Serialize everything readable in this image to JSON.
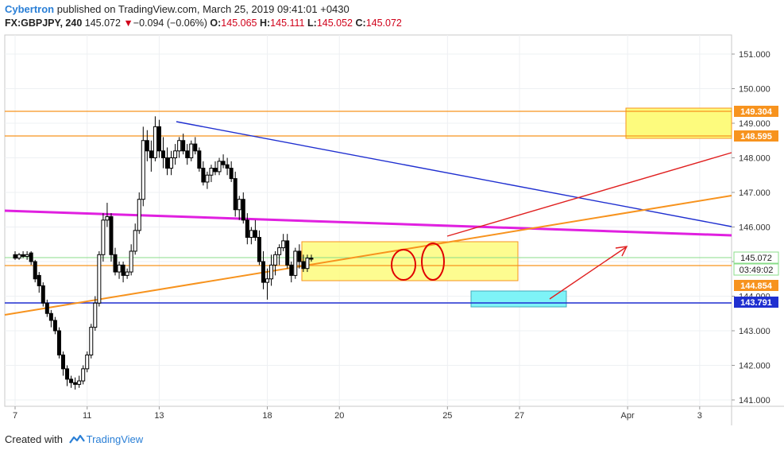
{
  "header": {
    "author": "Cybertron",
    "published_text": "published on TradingView.com, March 25, 2019 09:41:01 +0430",
    "symbol": "FX:GBPJPY, 240",
    "last": "145.072",
    "change_symbol": "▼",
    "change": "−0.094 (−0.06%)",
    "o_label": "O:",
    "o_value": "145.065",
    "h_label": "H:",
    "h_value": "145.111",
    "l_label": "L:",
    "l_value": "145.052",
    "c_label": "C:",
    "c_value": "145.072"
  },
  "footer": {
    "created_with": "Created with",
    "brand": "TradingView"
  },
  "colors": {
    "up_candle": "#ffffff",
    "down_candle": "#000000",
    "orange": "#f7931e",
    "blue": "#1f2fd0",
    "magenta": "#e020e0",
    "red": "#e02020",
    "yellow_zone": "#fdfb7d",
    "cyan_zone": "#7ef3f7",
    "green_price": "#88dd88"
  },
  "chart_data": {
    "type": "candlestick",
    "symbol": "FX:GBPJPY",
    "timeframe": "240",
    "ylim": [
      140.9,
      151.6
    ],
    "y_ticks": [
      "141.000",
      "142.000",
      "143.000",
      "144.000",
      "145.000",
      "146.000",
      "147.000",
      "148.000",
      "149.000",
      "150.000",
      "151.000"
    ],
    "x_ticks": [
      {
        "label": "7",
        "index": 0
      },
      {
        "label": "11",
        "index": 18
      },
      {
        "label": "13",
        "index": 36
      },
      {
        "label": "18",
        "index": 63
      },
      {
        "label": "20",
        "index": 81
      },
      {
        "label": "25",
        "index": 108
      },
      {
        "label": "27",
        "index": 126
      },
      {
        "label": "Apr",
        "index": 153
      },
      {
        "label": "3",
        "index": 171
      }
    ],
    "candles": [
      [
        145.2,
        145.3,
        145.05,
        145.1
      ],
      [
        145.1,
        145.25,
        145.05,
        145.2
      ],
      [
        145.2,
        145.3,
        145.1,
        145.15
      ],
      [
        145.15,
        145.3,
        145.05,
        145.2
      ],
      [
        145.25,
        145.3,
        144.9,
        145.0
      ],
      [
        145.0,
        145.05,
        144.4,
        144.5
      ],
      [
        144.6,
        144.7,
        144.1,
        144.3
      ],
      [
        144.3,
        144.4,
        143.7,
        143.8
      ],
      [
        143.8,
        143.9,
        143.4,
        143.5
      ],
      [
        143.5,
        143.6,
        143.1,
        143.3
      ],
      [
        143.3,
        143.4,
        142.9,
        143.0
      ],
      [
        143.0,
        143.1,
        142.2,
        142.3
      ],
      [
        142.3,
        142.4,
        141.7,
        141.9
      ],
      [
        141.9,
        142.0,
        141.4,
        141.6
      ],
      [
        141.6,
        141.7,
        141.35,
        141.5
      ],
      [
        141.5,
        141.65,
        141.3,
        141.45
      ],
      [
        141.45,
        141.7,
        141.35,
        141.55
      ],
      [
        141.55,
        142.0,
        141.45,
        141.9
      ],
      [
        141.9,
        142.4,
        141.8,
        142.3
      ],
      [
        142.3,
        143.2,
        142.2,
        143.1
      ],
      [
        143.1,
        144.0,
        143.0,
        143.8
      ],
      [
        143.8,
        145.3,
        143.7,
        145.2
      ],
      [
        145.2,
        146.4,
        145.0,
        146.2
      ],
      [
        146.2,
        146.7,
        146.0,
        146.3
      ],
      [
        146.3,
        146.4,
        145.0,
        145.2
      ],
      [
        145.2,
        145.4,
        144.6,
        144.7
      ],
      [
        144.7,
        145.0,
        144.5,
        144.9
      ],
      [
        144.9,
        145.0,
        144.4,
        144.6
      ],
      [
        144.6,
        144.8,
        144.5,
        144.7
      ],
      [
        144.7,
        145.5,
        144.6,
        145.3
      ],
      [
        145.3,
        146.1,
        145.2,
        145.9
      ],
      [
        145.9,
        147.0,
        145.8,
        146.8
      ],
      [
        146.8,
        148.9,
        146.6,
        148.5
      ],
      [
        148.5,
        148.8,
        147.9,
        148.2
      ],
      [
        148.2,
        148.5,
        147.6,
        148.0
      ],
      [
        148.0,
        149.2,
        147.9,
        148.9
      ],
      [
        148.9,
        149.1,
        148.0,
        148.2
      ],
      [
        148.2,
        148.6,
        147.7,
        148.0
      ],
      [
        148.0,
        148.3,
        147.5,
        147.7
      ],
      [
        147.7,
        148.2,
        147.5,
        148.0
      ],
      [
        148.0,
        148.4,
        147.8,
        148.2
      ],
      [
        148.2,
        148.6,
        148.0,
        148.5
      ],
      [
        148.5,
        148.7,
        148.1,
        148.2
      ],
      [
        148.2,
        148.4,
        147.8,
        148.0
      ],
      [
        148.0,
        148.5,
        147.9,
        148.4
      ],
      [
        148.4,
        148.6,
        148.1,
        148.2
      ],
      [
        148.2,
        148.3,
        147.6,
        147.7
      ],
      [
        147.7,
        147.9,
        147.2,
        147.3
      ],
      [
        147.3,
        147.6,
        147.1,
        147.5
      ],
      [
        147.5,
        147.8,
        147.3,
        147.7
      ],
      [
        147.7,
        147.9,
        147.5,
        147.6
      ],
      [
        147.6,
        148.0,
        147.5,
        147.9
      ],
      [
        147.9,
        148.1,
        147.7,
        147.8
      ],
      [
        147.8,
        148.0,
        147.5,
        147.7
      ],
      [
        147.7,
        147.9,
        147.3,
        147.4
      ],
      [
        147.4,
        147.6,
        146.3,
        146.5
      ],
      [
        146.5,
        146.9,
        146.2,
        146.8
      ],
      [
        146.8,
        147.0,
        146.1,
        146.2
      ],
      [
        146.2,
        146.4,
        145.5,
        145.7
      ],
      [
        145.7,
        146.0,
        145.5,
        145.9
      ],
      [
        145.9,
        146.2,
        145.6,
        145.7
      ],
      [
        145.7,
        145.9,
        144.9,
        145.0
      ],
      [
        145.0,
        145.3,
        144.2,
        144.4
      ],
      [
        144.4,
        144.8,
        143.9,
        144.5
      ],
      [
        144.5,
        145.2,
        144.3,
        144.9
      ],
      [
        144.9,
        145.3,
        144.6,
        145.2
      ],
      [
        145.2,
        145.5,
        144.9,
        145.4
      ],
      [
        145.4,
        145.8,
        145.3,
        145.6
      ],
      [
        145.6,
        145.8,
        144.8,
        144.9
      ],
      [
        144.9,
        145.0,
        144.4,
        144.6
      ],
      [
        144.6,
        145.4,
        144.5,
        145.3
      ],
      [
        145.3,
        145.5,
        144.8,
        145.0
      ],
      [
        145.0,
        145.2,
        144.7,
        144.8
      ],
      [
        144.8,
        145.2,
        144.7,
        145.1
      ],
      [
        145.1,
        145.2,
        145.0,
        145.07
      ]
    ]
  },
  "price_labels": {
    "p151": "151.000",
    "p149304": "149.304",
    "p148595": "148.595",
    "last": "145.072",
    "countdown": "03:49:02",
    "p144854": "144.854",
    "p143791": "143.791"
  }
}
